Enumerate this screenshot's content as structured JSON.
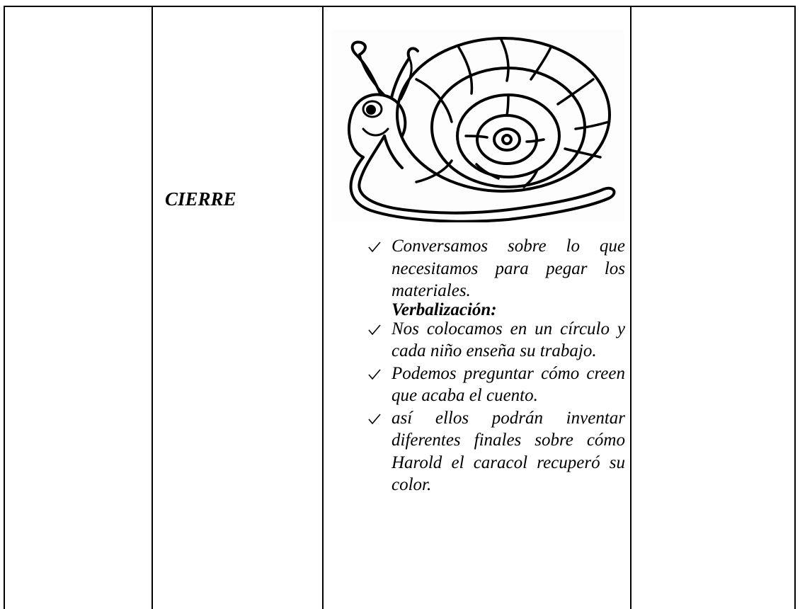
{
  "table": {
    "row_label": "CIERRE",
    "items_before": [
      "Conversamos sobre lo que necesitamos para pegar los materiales."
    ],
    "heading": "Verbalización:",
    "items_after": [
      "Nos colocamos en un círculo y cada niño enseña su trabajo.",
      "Podemos preguntar cómo creen que acaba el cuento.",
      "así ellos podrán inventar diferentes finales sobre cómo Harold el caracol recuperó su color."
    ]
  }
}
